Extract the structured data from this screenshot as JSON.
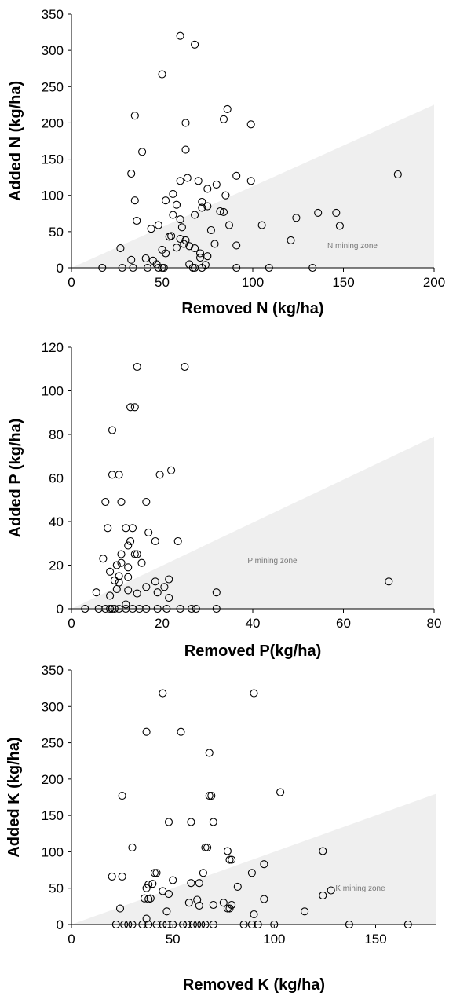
{
  "chart_data": [
    {
      "type": "scatter",
      "xlabel": "Removed N (kg/ha)",
      "ylabel": "Added N (kg/ha)",
      "zone_label": "N mining zone",
      "xlim": [
        0,
        200
      ],
      "ylim": [
        0,
        350
      ],
      "xticks": [
        0,
        50,
        100,
        150,
        200
      ],
      "yticks": [
        0,
        50,
        100,
        150,
        200,
        250,
        300,
        350
      ],
      "mining_zone": [
        [
          0,
          0
        ],
        [
          200,
          225
        ],
        [
          200,
          0
        ]
      ],
      "zone_color": "#efefef",
      "points": [
        [
          60,
          320
        ],
        [
          68,
          308
        ],
        [
          50,
          267
        ],
        [
          86,
          219
        ],
        [
          35,
          210
        ],
        [
          84,
          205
        ],
        [
          99,
          198
        ],
        [
          63,
          200
        ],
        [
          39,
          160
        ],
        [
          63,
          163
        ],
        [
          33,
          130
        ],
        [
          91,
          127
        ],
        [
          180,
          129
        ],
        [
          64,
          124
        ],
        [
          70,
          120
        ],
        [
          60,
          120
        ],
        [
          99,
          120
        ],
        [
          80,
          115
        ],
        [
          75,
          109
        ],
        [
          85,
          100
        ],
        [
          56,
          102
        ],
        [
          35,
          93
        ],
        [
          52,
          93
        ],
        [
          58,
          87
        ],
        [
          75,
          85
        ],
        [
          72,
          91
        ],
        [
          72,
          83
        ],
        [
          82,
          78
        ],
        [
          84,
          77
        ],
        [
          68,
          73
        ],
        [
          136,
          76
        ],
        [
          146,
          76
        ],
        [
          124,
          69
        ],
        [
          60,
          67
        ],
        [
          56,
          73
        ],
        [
          36,
          65
        ],
        [
          48,
          59
        ],
        [
          61,
          56
        ],
        [
          87,
          59
        ],
        [
          105,
          59
        ],
        [
          148,
          58
        ],
        [
          44,
          54
        ],
        [
          77,
          52
        ],
        [
          55,
          44
        ],
        [
          54,
          43
        ],
        [
          60,
          40
        ],
        [
          63,
          38
        ],
        [
          121,
          38
        ],
        [
          62,
          33
        ],
        [
          50,
          25
        ],
        [
          65,
          30
        ],
        [
          91,
          31
        ],
        [
          79,
          33
        ],
        [
          68,
          27
        ],
        [
          58,
          28
        ],
        [
          52,
          20
        ],
        [
          71,
          20
        ],
        [
          27,
          27
        ],
        [
          71,
          14
        ],
        [
          75,
          16
        ],
        [
          33,
          11
        ],
        [
          41,
          13
        ],
        [
          45,
          10
        ],
        [
          47,
          5
        ],
        [
          65,
          5
        ],
        [
          74,
          4
        ],
        [
          42,
          0
        ],
        [
          17,
          0
        ],
        [
          28,
          0
        ],
        [
          48,
          0
        ],
        [
          51,
          0
        ],
        [
          67,
          0
        ],
        [
          68,
          0
        ],
        [
          72,
          0
        ],
        [
          91,
          0
        ],
        [
          109,
          0
        ],
        [
          133,
          0
        ],
        [
          34,
          0
        ],
        [
          50,
          0
        ]
      ]
    },
    {
      "type": "scatter",
      "xlabel": "Removed P(kg/ha)",
      "ylabel": "Added P (kg/ha)",
      "zone_label": "P mining zone",
      "xlim": [
        0,
        80
      ],
      "ylim": [
        0,
        120
      ],
      "xticks": [
        0,
        20,
        40,
        60,
        80
      ],
      "yticks": [
        0,
        20,
        40,
        60,
        80,
        100,
        120
      ],
      "mining_zone": [
        [
          0,
          0
        ],
        [
          80,
          79
        ],
        [
          80,
          0
        ]
      ],
      "zone_color": "#efefef",
      "points": [
        [
          14.5,
          111
        ],
        [
          25,
          111
        ],
        [
          13,
          92.5
        ],
        [
          14,
          92.5
        ],
        [
          9,
          82
        ],
        [
          9,
          61.5
        ],
        [
          10.5,
          61.5
        ],
        [
          19.5,
          61.5
        ],
        [
          22,
          63.5
        ],
        [
          7.5,
          49
        ],
        [
          11,
          49
        ],
        [
          16.5,
          49
        ],
        [
          8,
          37
        ],
        [
          12,
          37
        ],
        [
          13.5,
          37
        ],
        [
          17,
          35
        ],
        [
          13,
          31
        ],
        [
          12.5,
          29
        ],
        [
          18.5,
          31
        ],
        [
          23.5,
          31
        ],
        [
          7,
          23
        ],
        [
          11,
          25
        ],
        [
          14,
          25
        ],
        [
          14.5,
          25
        ],
        [
          11,
          21
        ],
        [
          10,
          20
        ],
        [
          15.5,
          21
        ],
        [
          12.5,
          19
        ],
        [
          8.5,
          17
        ],
        [
          10.5,
          15
        ],
        [
          12.5,
          14.5
        ],
        [
          9.5,
          13
        ],
        [
          10.5,
          12
        ],
        [
          18.5,
          12.5
        ],
        [
          21.5,
          13.5
        ],
        [
          16.5,
          10
        ],
        [
          20.5,
          10
        ],
        [
          10,
          9
        ],
        [
          12.5,
          8.5
        ],
        [
          5.5,
          7.5
        ],
        [
          19,
          7.5
        ],
        [
          32,
          7.5
        ],
        [
          8.5,
          6
        ],
        [
          21.5,
          5
        ],
        [
          14.5,
          7
        ],
        [
          70,
          12.5
        ],
        [
          12,
          2
        ],
        [
          3,
          0
        ],
        [
          6,
          0
        ],
        [
          7.5,
          0
        ],
        [
          8.5,
          0
        ],
        [
          9,
          0
        ],
        [
          9.5,
          0
        ],
        [
          10.5,
          0
        ],
        [
          12,
          0
        ],
        [
          13.5,
          0
        ],
        [
          15,
          0
        ],
        [
          16.5,
          0
        ],
        [
          19,
          0
        ],
        [
          21,
          0
        ],
        [
          24,
          0
        ],
        [
          26.5,
          0
        ],
        [
          27.5,
          0
        ],
        [
          32,
          0
        ]
      ]
    },
    {
      "type": "scatter",
      "xlabel": "Removed K (kg/ha)",
      "ylabel": "Added K (kg/ha)",
      "zone_label": "K mining zone",
      "xlim": [
        0,
        180
      ],
      "ylim": [
        0,
        350
      ],
      "xticks": [
        0,
        50,
        100,
        150
      ],
      "yticks": [
        0,
        50,
        100,
        150,
        200,
        250,
        300,
        350
      ],
      "mining_zone": [
        [
          0,
          0
        ],
        [
          180,
          180
        ],
        [
          180,
          0
        ]
      ],
      "zone_color": "#efefef",
      "points": [
        [
          45,
          318
        ],
        [
          90,
          318
        ],
        [
          37,
          265
        ],
        [
          54,
          265
        ],
        [
          68,
          236
        ],
        [
          25,
          177
        ],
        [
          68,
          177
        ],
        [
          69,
          177
        ],
        [
          103,
          182
        ],
        [
          48,
          141
        ],
        [
          59,
          141
        ],
        [
          70,
          141
        ],
        [
          30,
          106
        ],
        [
          66,
          106
        ],
        [
          67,
          106
        ],
        [
          124,
          101
        ],
        [
          77,
          101
        ],
        [
          78,
          89
        ],
        [
          79,
          89
        ],
        [
          95,
          83
        ],
        [
          89,
          71
        ],
        [
          65,
          71
        ],
        [
          41,
          71
        ],
        [
          42,
          71
        ],
        [
          20,
          66
        ],
        [
          25,
          66
        ],
        [
          50,
          61
        ],
        [
          38,
          55
        ],
        [
          40,
          56
        ],
        [
          37,
          50
        ],
        [
          45,
          46
        ],
        [
          48,
          42
        ],
        [
          59,
          57
        ],
        [
          63,
          57
        ],
        [
          82,
          52
        ],
        [
          128,
          47
        ],
        [
          124,
          40
        ],
        [
          95,
          35
        ],
        [
          36,
          36
        ],
        [
          39,
          36
        ],
        [
          38,
          35
        ],
        [
          58,
          30
        ],
        [
          62,
          34
        ],
        [
          75,
          30
        ],
        [
          77,
          22
        ],
        [
          78,
          22
        ],
        [
          79,
          27
        ],
        [
          70,
          27
        ],
        [
          63,
          26
        ],
        [
          115,
          18
        ],
        [
          90,
          14
        ],
        [
          47,
          18
        ],
        [
          24,
          22
        ],
        [
          37,
          8
        ],
        [
          22,
          0
        ],
        [
          26,
          0
        ],
        [
          28,
          0
        ],
        [
          30,
          0
        ],
        [
          35,
          0
        ],
        [
          38,
          0
        ],
        [
          42,
          0
        ],
        [
          45,
          0
        ],
        [
          47,
          0
        ],
        [
          50,
          0
        ],
        [
          55,
          0
        ],
        [
          57,
          0
        ],
        [
          60,
          0
        ],
        [
          62,
          0
        ],
        [
          64,
          0
        ],
        [
          66,
          0
        ],
        [
          70,
          0
        ],
        [
          85,
          0
        ],
        [
          89,
          0
        ],
        [
          92,
          0
        ],
        [
          100,
          0
        ],
        [
          137,
          0
        ],
        [
          166,
          0
        ]
      ]
    }
  ]
}
